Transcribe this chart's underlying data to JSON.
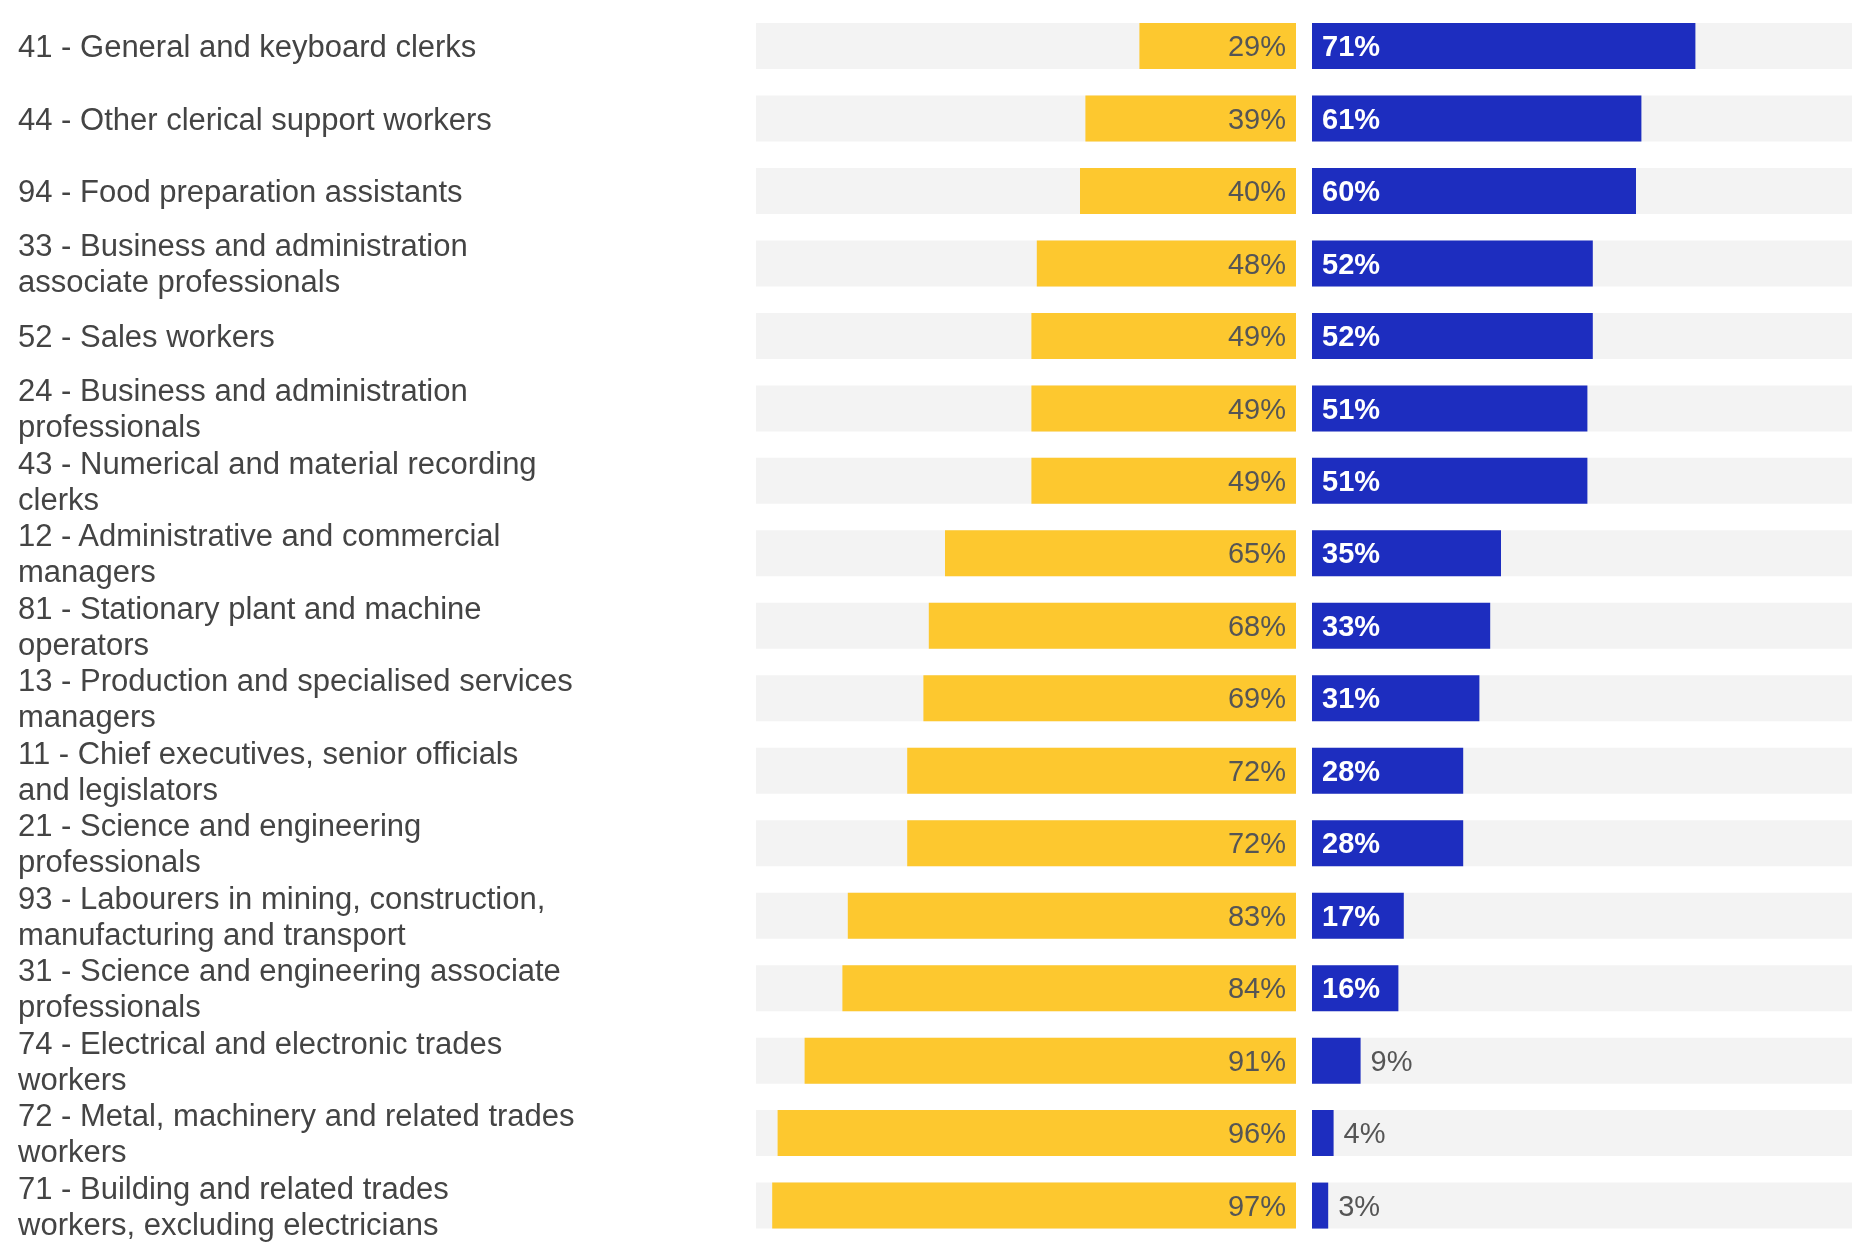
{
  "chart_data": [
    {
      "type": "bar",
      "orientation": "horizontal",
      "tick_labels": "y",
      "categories": [
        "41 - General and keyboard clerks",
        "44 - Other clerical support workers",
        "94 - Food preparation assistants",
        "33 - Business and administration associate professionals",
        "52 - Sales workers",
        "24 - Business and administration professionals",
        "43 - Numerical and material recording clerks",
        "12 - Administrative and commercial managers",
        "81 - Stationary plant and machine operators",
        "13 - Production and specialised services managers",
        "11 - Chief executives, senior officials and legislators",
        "21 - Science and engineering professionals",
        "93 - Labourers in mining, construction, manufacturing and transport",
        "31 - Science and engineering associate professionals",
        "74 - Electrical and electronic trades workers",
        "72 - Metal, machinery and related trades workers",
        "71 - Building and related trades workers, excluding electricians"
      ],
      "xlim": [
        100,
        0
      ],
      "series": [
        {
          "color": "#fdc82f",
          "values": [
            29,
            39,
            40,
            48,
            49,
            49,
            49,
            65,
            68,
            69,
            72,
            72,
            83,
            84,
            91,
            96,
            97
          ],
          "value_labels": [
            "29%",
            "39%",
            "40%",
            "48%",
            "49%",
            "49%",
            "49%",
            "65%",
            "68%",
            "69%",
            "72%",
            "72%",
            "83%",
            "84%",
            "91%",
            "96%",
            "97%"
          ]
        }
      ]
    },
    {
      "type": "bar",
      "orientation": "horizontal",
      "tick_labels": false,
      "xlim": [
        0,
        100
      ],
      "series": [
        {
          "color": "#1d2dbf",
          "values": [
            71,
            61,
            60,
            52,
            52,
            51,
            51,
            35,
            33,
            31,
            28,
            28,
            17,
            16,
            9,
            4,
            3
          ],
          "value_labels": [
            "71%",
            "61%",
            "60%",
            "52%",
            "52%",
            "51%",
            "51%",
            "35%",
            "33%",
            "31%",
            "28%",
            "28%",
            "17%",
            "16%",
            "9%",
            "4%",
            "3%"
          ]
        }
      ]
    }
  ]
}
